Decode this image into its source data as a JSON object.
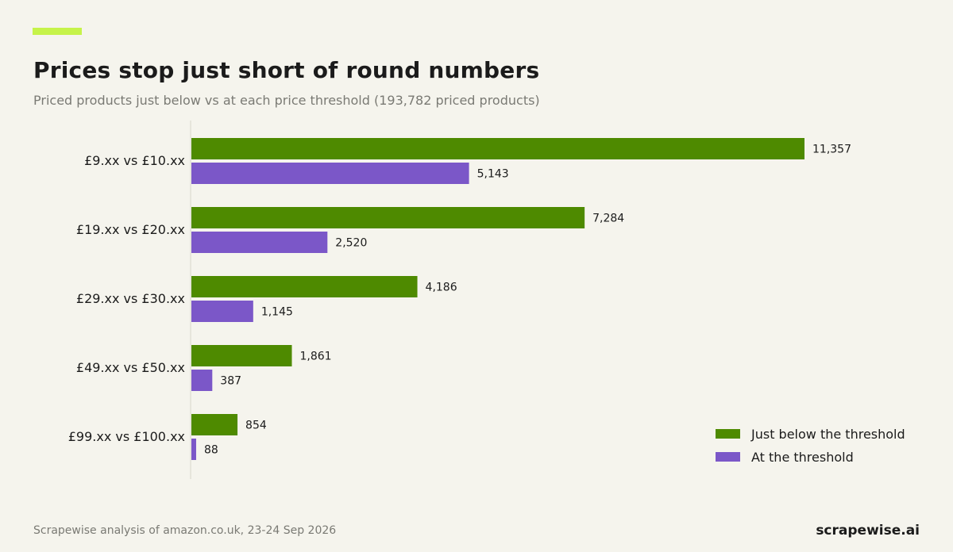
{
  "header": {
    "title": "Prices stop just short of round numbers",
    "subtitle": "Priced products just below vs at each price threshold (193,782 priced products)"
  },
  "footer": {
    "source": "Scrapewise analysis of amazon.co.uk, 23-24 Sep 2026",
    "brand": "scrapewise.ai"
  },
  "colors": {
    "accent": "#c6f34a",
    "below": "#4e8a00",
    "at": "#7b57c8",
    "axis": "#d8d6cc",
    "text": "#1b1b1b"
  },
  "chart_data": {
    "type": "bar",
    "orientation": "horizontal",
    "title": "Prices stop just short of round numbers",
    "subtitle": "Priced products just below vs at each price threshold (193,782 priced products)",
    "categories": [
      "£9.xx vs £10.xx",
      "£19.xx vs £20.xx",
      "£29.xx vs £30.xx",
      "£49.xx vs £50.xx",
      "£99.xx vs £100.xx"
    ],
    "series": [
      {
        "name": "Just below the threshold",
        "values": [
          11357,
          7284,
          4186,
          1861,
          854
        ],
        "labels": [
          "11,357",
          "7,284",
          "4,186",
          "1,861",
          "854"
        ]
      },
      {
        "name": "At the threshold",
        "values": [
          5143,
          2520,
          1145,
          387,
          88
        ],
        "labels": [
          "5,143",
          "2,520",
          "1,145",
          "387",
          "88"
        ]
      }
    ],
    "xlim": [
      0,
      11357
    ],
    "grid": false,
    "legend_position": "bottom-right"
  }
}
